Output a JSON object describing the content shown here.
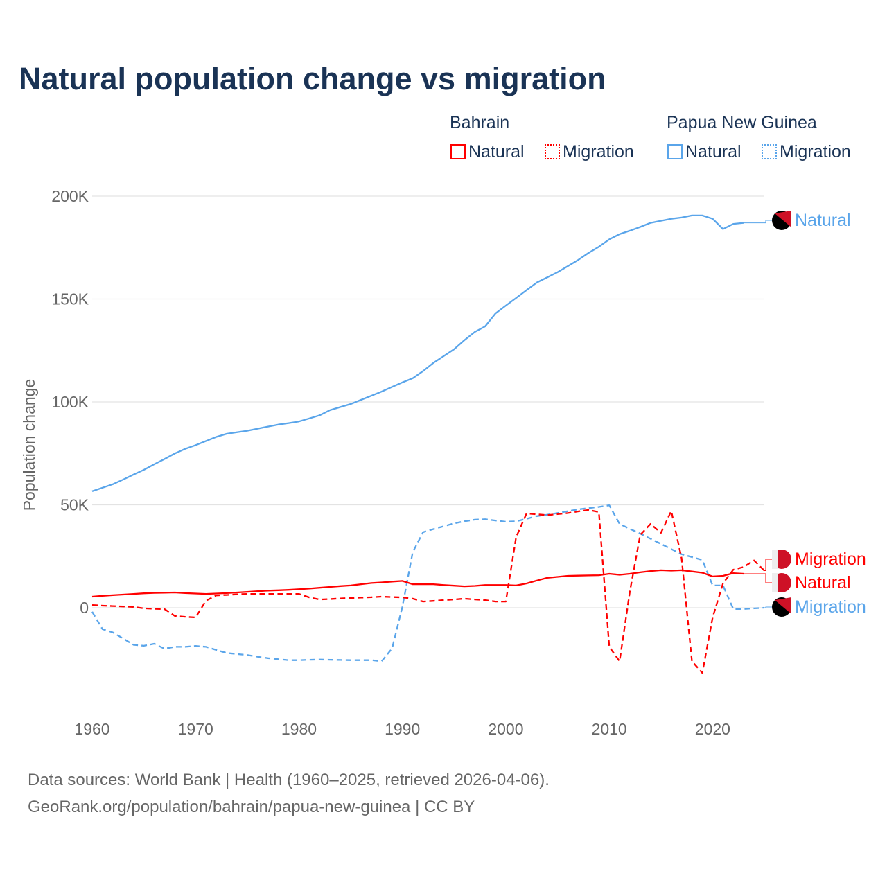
{
  "chart_data": {
    "type": "line",
    "title": "Natural population change vs migration",
    "ylabel": "Population change",
    "xlabel": "",
    "ylim": [
      -40000,
      200000
    ],
    "xlim": [
      1960,
      2025
    ],
    "yticks": [
      {
        "v": 0,
        "label": "0"
      },
      {
        "v": 50000,
        "label": "50K"
      },
      {
        "v": 100000,
        "label": "100K"
      },
      {
        "v": 150000,
        "label": "150K"
      },
      {
        "v": 200000,
        "label": "200K"
      }
    ],
    "xticks": [
      {
        "v": 1960,
        "label": "1960"
      },
      {
        "v": 1970,
        "label": "1970"
      },
      {
        "v": 1980,
        "label": "1980"
      },
      {
        "v": 1990,
        "label": "1990"
      },
      {
        "v": 2000,
        "label": "2000"
      },
      {
        "v": 2010,
        "label": "2010"
      },
      {
        "v": 2020,
        "label": "2020"
      }
    ],
    "legend": {
      "groups": [
        {
          "country": "Bahrain",
          "items": [
            "Natural",
            "Migration"
          ]
        },
        {
          "country": "Papua New Guinea",
          "items": [
            "Natural",
            "Migration"
          ]
        }
      ],
      "placement": "top-right"
    },
    "series": [
      {
        "name": "Papua New Guinea Natural",
        "country": "Papua New Guinea",
        "kind": "Natural",
        "color": "#5aa5ea",
        "dashed": false,
        "end_label": "Natural",
        "start": 1960,
        "values": [
          56600,
          58300,
          60000,
          62300,
          64700,
          67000,
          69700,
          72300,
          75000,
          77200,
          79000,
          81000,
          83000,
          84500,
          85300,
          86000,
          87000,
          88000,
          89000,
          89700,
          90500,
          92000,
          93500,
          96000,
          97500,
          99000,
          101000,
          103000,
          105000,
          107300,
          109500,
          111500,
          115000,
          119000,
          122300,
          125600,
          130000,
          134000,
          136700,
          143000,
          146800,
          150500,
          154300,
          158000,
          160500,
          163000,
          166000,
          169000,
          172400,
          175400,
          179000,
          181500,
          183200,
          185000,
          187000,
          188000,
          189000,
          189600,
          190600,
          190600,
          189000,
          184000,
          186500,
          187000
        ]
      },
      {
        "name": "Papua New Guinea Migration",
        "country": "Papua New Guinea",
        "kind": "Migration",
        "color": "#5aa5ea",
        "dashed": true,
        "end_label": "Migration",
        "start": 1960,
        "values": [
          -2000,
          -10400,
          -12000,
          -15000,
          -18000,
          -18500,
          -17500,
          -19900,
          -19000,
          -19000,
          -18600,
          -19000,
          -20500,
          -22000,
          -22500,
          -23000,
          -23800,
          -24500,
          -25000,
          -25500,
          -25500,
          -25300,
          -25200,
          -25300,
          -25400,
          -25500,
          -25500,
          -25500,
          -26000,
          -19800,
          500,
          27000,
          36700,
          38200,
          39600,
          41000,
          42000,
          42800,
          43000,
          42400,
          41800,
          42000,
          43200,
          44500,
          45200,
          46000,
          46900,
          47800,
          48400,
          49000,
          49800,
          40700,
          38300,
          36000,
          33500,
          31000,
          28500,
          26000,
          24600,
          23200,
          10800,
          10800,
          -600,
          -600,
          -300,
          0
        ]
      },
      {
        "name": "Bahrain Natural",
        "country": "Bahrain",
        "kind": "Natural",
        "color": "#ff0000",
        "dashed": false,
        "end_label": "Natural",
        "start": 1960,
        "values": [
          5400,
          5800,
          6100,
          6400,
          6700,
          7000,
          7200,
          7300,
          7400,
          7100,
          6900,
          6700,
          6900,
          7100,
          7400,
          7700,
          8000,
          8300,
          8500,
          8700,
          9000,
          9300,
          9700,
          10100,
          10500,
          10800,
          11400,
          12000,
          12300,
          12700,
          13000,
          11400,
          11400,
          11400,
          11000,
          10700,
          10400,
          10600,
          11000,
          11000,
          11000,
          10800,
          11800,
          13200,
          14500,
          15000,
          15500,
          15600,
          15700,
          15800,
          16500,
          16000,
          16500,
          17200,
          17800,
          18200,
          18000,
          18200,
          17600,
          17000,
          15200,
          15500,
          16800,
          16500
        ]
      },
      {
        "name": "Bahrain Migration",
        "country": "Bahrain",
        "kind": "Migration",
        "color": "#ff0000",
        "dashed": true,
        "end_label": "Migration",
        "start": 1960,
        "values": [
          1300,
          1000,
          800,
          600,
          400,
          -300,
          -500,
          -700,
          -4000,
          -4400,
          -4700,
          3400,
          6000,
          6200,
          6500,
          6700,
          6700,
          6700,
          6700,
          6700,
          6700,
          5000,
          4000,
          4200,
          4500,
          4700,
          4900,
          5100,
          5400,
          5200,
          5000,
          4400,
          3000,
          3300,
          3700,
          4000,
          4400,
          4000,
          3700,
          3000,
          3000,
          34300,
          45800,
          45400,
          45000,
          45500,
          46000,
          46800,
          47500,
          46500,
          -19000,
          -26000,
          8000,
          35400,
          40700,
          36400,
          47000,
          24000,
          -26000,
          -31700,
          -4700,
          11800,
          18500,
          19800,
          23000,
          18000
        ]
      }
    ]
  },
  "footer": {
    "line1": "Data sources: World Bank | Health (1960–2025, retrieved 2026-04-06).",
    "line2": "GeoRank.org/population/bahrain/papua-new-guinea | CC BY"
  }
}
